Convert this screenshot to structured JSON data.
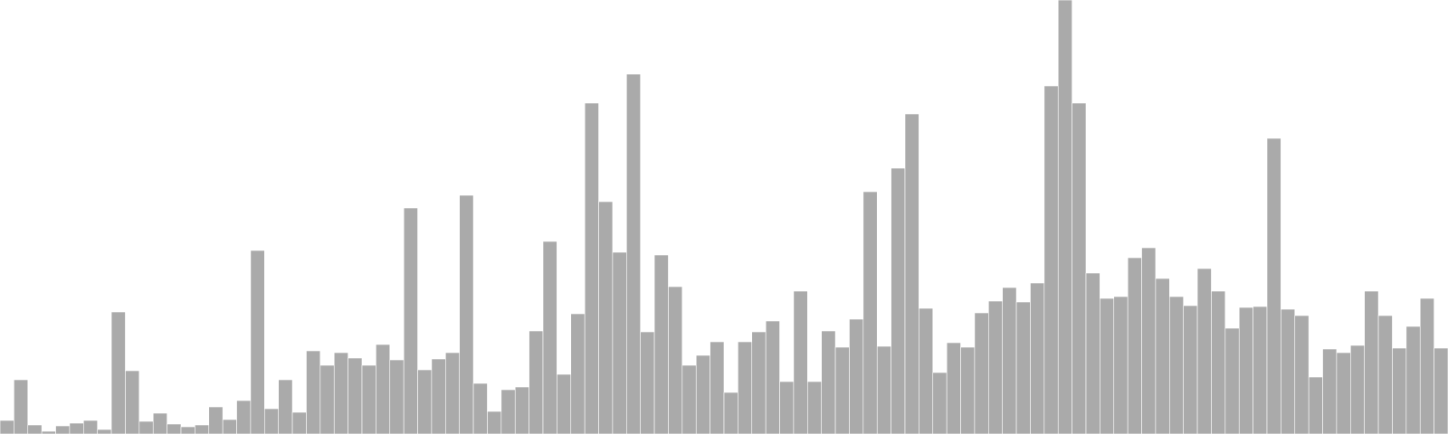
{
  "chart_data": {
    "type": "bar",
    "title": "",
    "xlabel": "",
    "ylabel": "",
    "grid": false,
    "legend": "none",
    "bar_color": "#aaaaaa",
    "ylim": [
      0,
      480
    ],
    "values": [
      15,
      60,
      10,
      3,
      9,
      12,
      15,
      5,
      135,
      70,
      14,
      23,
      11,
      8,
      10,
      30,
      16,
      37,
      203,
      28,
      60,
      24,
      92,
      76,
      90,
      84,
      76,
      99,
      82,
      250,
      71,
      83,
      90,
      264,
      56,
      25,
      49,
      52,
      114,
      213,
      66,
      133,
      366,
      257,
      201,
      398,
      113,
      198,
      163,
      76,
      87,
      102,
      46,
      102,
      113,
      125,
      58,
      158,
      58,
      114,
      96,
      127,
      268,
      97,
      294,
      354,
      139,
      68,
      101,
      96,
      134,
      147,
      162,
      146,
      167,
      385,
      480,
      366,
      178,
      150,
      152,
      195,
      206,
      172,
      152,
      142,
      183,
      158,
      117,
      140,
      141,
      327,
      138,
      131,
      63,
      94,
      90,
      98,
      158,
      131,
      95,
      119,
      150,
      95
    ]
  }
}
